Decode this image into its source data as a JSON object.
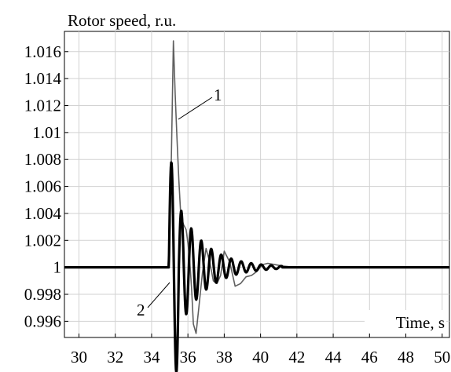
{
  "chart_data": {
    "type": "line",
    "ylabel": "Rotor speed, r.u.",
    "xlabel": "Time, s",
    "xlim": [
      29.2,
      50.4
    ],
    "ylim": [
      0.9948,
      1.0175
    ],
    "x_ticks": [
      "30",
      "32",
      "34",
      "36",
      "38",
      "40",
      "42",
      "44",
      "46",
      "48",
      "50"
    ],
    "y_ticks": [
      "1.016",
      "1.014",
      "1.012",
      "1.01",
      "1.008",
      "1.006",
      "1.004",
      "1.002",
      "1",
      "0.998",
      "0.996"
    ],
    "x_tick_values": [
      30,
      32,
      34,
      36,
      38,
      40,
      42,
      44,
      46,
      48,
      50
    ],
    "y_tick_values": [
      1.016,
      1.014,
      1.012,
      1.01,
      1.008,
      1.006,
      1.004,
      1.002,
      1.0,
      0.998,
      0.996
    ],
    "grid": true,
    "annotations": [
      {
        "text": "1",
        "x": 35.55,
        "y": 1.0122
      },
      {
        "text": "2",
        "x": 35.0,
        "y": 0.9985
      }
    ],
    "series": [
      {
        "color": "#606060",
        "x": [
          29.2,
          34.9,
          35.0,
          35.1,
          35.2,
          35.3,
          35.4,
          35.5,
          35.6,
          35.75,
          35.9,
          36.0,
          36.1,
          36.2,
          36.3,
          36.45,
          36.6,
          36.8,
          37.0,
          37.2,
          37.4,
          37.6,
          37.8,
          38.0,
          38.3,
          38.6,
          38.9,
          39.2,
          39.5,
          39.8,
          40.1,
          40.4,
          40.8,
          41.2,
          42.0,
          50.4
        ],
        "y": [
          1.0,
          1.0,
          1.002,
          1.009,
          1.0168,
          1.0128,
          1.0095,
          1.0065,
          1.004,
          1.0032,
          1.0028,
          1.0018,
          1.0005,
          0.9985,
          0.9958,
          0.9951,
          0.997,
          0.9996,
          1.0014,
          1.0004,
          0.999,
          0.9988,
          0.9994,
          1.0012,
          1.0004,
          0.9986,
          0.9988,
          0.9993,
          0.9994,
          0.9997,
          1.0002,
          1.0003,
          1.0002,
          1.0001,
          1.0,
          1.0
        ]
      },
      {
        "color": "#000000",
        "points_per_unit": 50,
        "baseline": 1.0,
        "start": 34.95,
        "period": 0.55,
        "amplitude_initial": 0.0078,
        "amplitude_secondary": 0.0046,
        "decay": 0.68,
        "end": 41.2
      }
    ]
  }
}
